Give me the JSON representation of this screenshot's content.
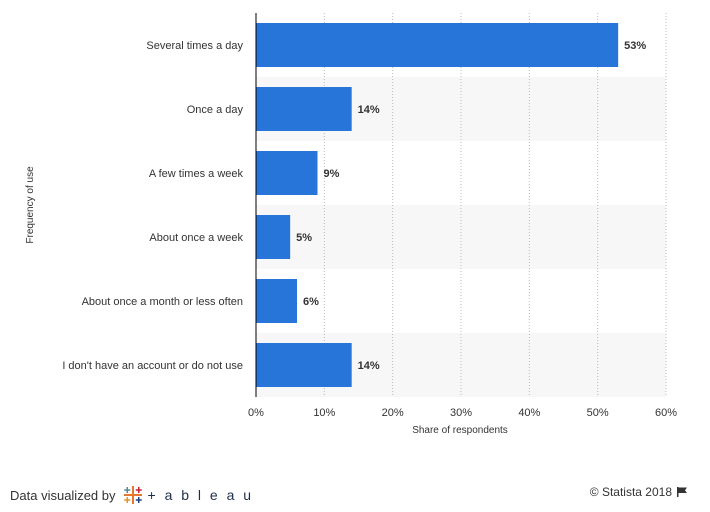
{
  "chart_data": {
    "type": "bar",
    "orientation": "horizontal",
    "categories": [
      "Several times a day",
      "Once a day",
      "A few times a week",
      "About once a week",
      "About once a month or less often",
      "I don't have an account or do not use"
    ],
    "values": [
      53,
      14,
      9,
      5,
      6,
      14
    ],
    "value_labels": [
      "53%",
      "14%",
      "9%",
      "5%",
      "6%",
      "14%"
    ],
    "xlabel": "Share of respondents",
    "ylabel": "Frequency of use",
    "xlim": [
      0,
      60
    ],
    "x_ticks": [
      "0%",
      "10%",
      "20%",
      "30%",
      "40%",
      "50%",
      "60%"
    ],
    "grid": "vertical dotted",
    "bar_color": "#2775d8"
  },
  "footer": {
    "data_visualized_by": "Data visualized by",
    "tableau_text": "+ a b l e a u",
    "copyright": "© Statista 2018"
  }
}
